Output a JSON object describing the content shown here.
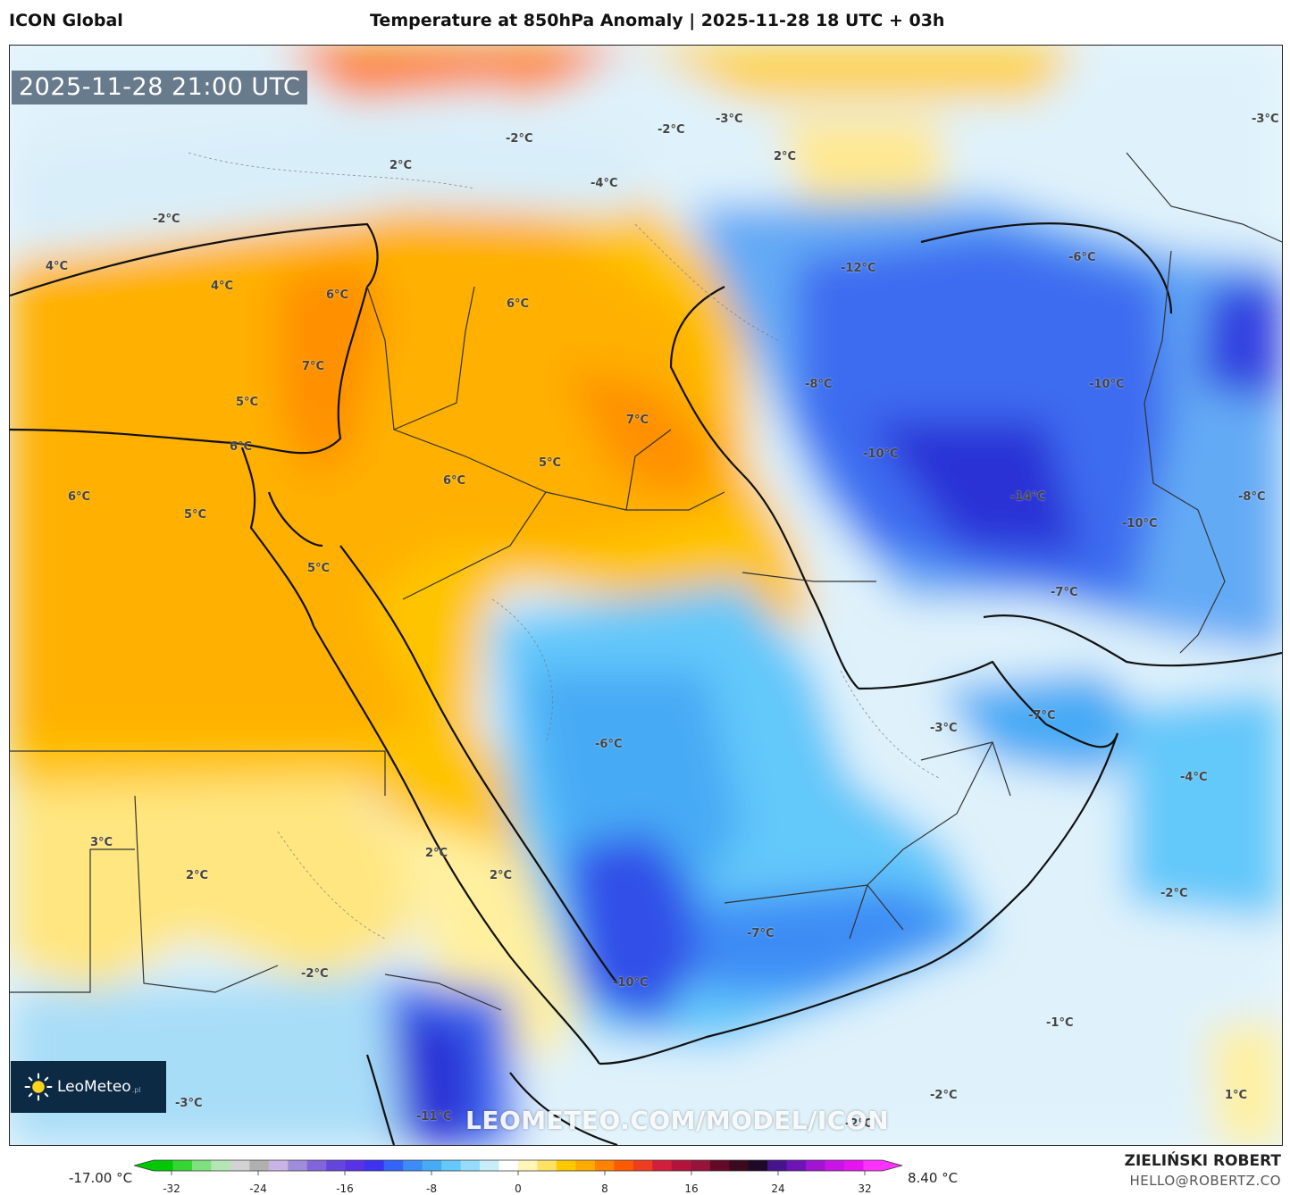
{
  "header": {
    "model": "ICON Global",
    "title": "Temperature at 850hPa Anomaly | 2025-11-28 18 UTC + 03h"
  },
  "map": {
    "timestamp": "2025-11-28 21:00 UTC",
    "watermark": "LEOMETEO.COM/MODEL/ICON",
    "logo_text": "LeoMeteo",
    "logo_suffix": ".pl",
    "labels": [
      {
        "text": "-2°C"
      },
      {
        "text": "2°C"
      },
      {
        "text": "-2°C"
      },
      {
        "text": "-4°C"
      },
      {
        "text": "-2°C"
      },
      {
        "text": "-3°C"
      },
      {
        "text": "2°C"
      },
      {
        "text": "-3°C"
      },
      {
        "text": "4°C"
      },
      {
        "text": "4°C"
      },
      {
        "text": "6°C"
      },
      {
        "text": "6°C"
      },
      {
        "text": "-12°C"
      },
      {
        "text": "-6°C"
      },
      {
        "text": "7°C"
      },
      {
        "text": "5°C"
      },
      {
        "text": "-8°C"
      },
      {
        "text": "-10°C"
      },
      {
        "text": "7°C"
      },
      {
        "text": "6°C"
      },
      {
        "text": "-10°C"
      },
      {
        "text": "5°C"
      },
      {
        "text": "6°C"
      },
      {
        "text": "6°C"
      },
      {
        "text": "-14°C"
      },
      {
        "text": "5°C"
      },
      {
        "text": "-10°C"
      },
      {
        "text": "-8°C"
      },
      {
        "text": "5°C"
      },
      {
        "text": "-7°C"
      },
      {
        "text": "-7°C"
      },
      {
        "text": "-3°C"
      },
      {
        "text": "-6°C"
      },
      {
        "text": "-4°C"
      },
      {
        "text": "3°C"
      },
      {
        "text": "2°C"
      },
      {
        "text": "2°C"
      },
      {
        "text": "2°C"
      },
      {
        "text": "-2°C"
      },
      {
        "text": "-7°C"
      },
      {
        "text": "-2°C"
      },
      {
        "text": "-10°C"
      },
      {
        "text": "-1°C"
      },
      {
        "text": "-3°C"
      },
      {
        "text": "-2°C"
      },
      {
        "text": "1°C"
      },
      {
        "text": "-11°C"
      },
      {
        "text": "-2°C"
      }
    ]
  },
  "colorbar": {
    "min_label": "-17.00 °C",
    "max_label": "8.40 °C",
    "ticks": [
      "-32",
      "-24",
      "-16",
      "-8",
      "0",
      "8",
      "16",
      "24",
      "32"
    ],
    "colors": [
      "#00c800",
      "#33d633",
      "#7ee07e",
      "#b4e6b4",
      "#d2d2d2",
      "#b0b0b0",
      "#c8b4e6",
      "#a08cdc",
      "#8264dc",
      "#6446dc",
      "#5a32e6",
      "#3c32f0",
      "#3264f5",
      "#3c8cf5",
      "#46aaf5",
      "#64c8fa",
      "#96dcfa",
      "#c8eefa",
      "#ffffff",
      "#fff5b4",
      "#ffe164",
      "#ffc800",
      "#ffaa00",
      "#ff8200",
      "#ff5a00",
      "#f03c1e",
      "#d21e3c",
      "#b4143c",
      "#96143c",
      "#640a28",
      "#3c0a1e",
      "#1e0a28",
      "#46148c",
      "#6e14b4",
      "#a014d2",
      "#c814e6",
      "#e614f0",
      "#ff32ff"
    ]
  },
  "author": {
    "name": "ZIELIŃSKI ROBERT",
    "email": "HELLO@ROBERTZ.CO"
  }
}
